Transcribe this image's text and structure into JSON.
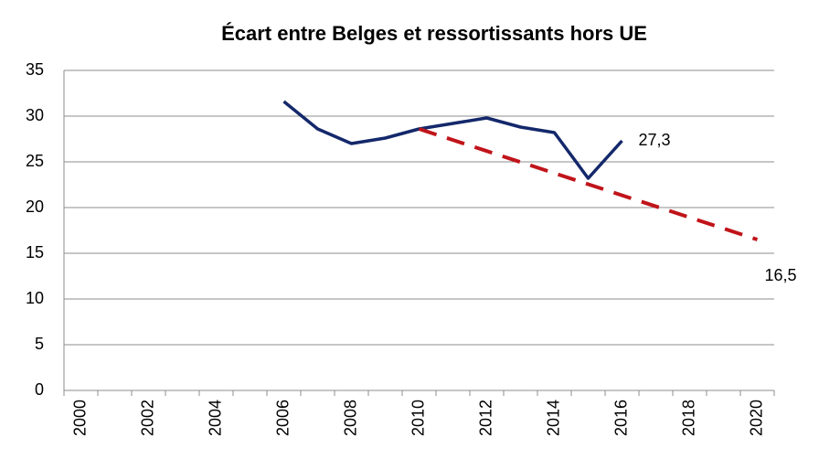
{
  "chart_data": {
    "type": "line",
    "title": "Écart entre Belges et ressortissants hors UE",
    "categories": [
      "2000",
      null,
      "2002",
      null,
      "2004",
      null,
      "2006",
      null,
      "2008",
      null,
      "2010",
      null,
      "2012",
      null,
      "2014",
      null,
      "2016",
      null,
      "2018",
      null,
      "2020"
    ],
    "series": [
      {
        "color": "#14286b",
        "dash": false,
        "values": [
          null,
          null,
          null,
          null,
          null,
          null,
          31.6,
          28.6,
          27.0,
          27.6,
          28.6,
          29.2,
          29.8,
          28.8,
          28.2,
          23.2,
          27.3,
          null,
          null,
          null,
          null
        ],
        "value_labels": [
          null,
          null,
          null,
          null,
          null,
          null,
          null,
          null,
          null,
          null,
          null,
          null,
          null,
          null,
          null,
          null,
          "27,3",
          null,
          null,
          null,
          null
        ]
      },
      {
        "color": "#c0141a",
        "dash": true,
        "values": [
          null,
          null,
          null,
          null,
          null,
          null,
          null,
          null,
          null,
          null,
          28.6,
          27.39,
          26.18,
          24.97,
          23.76,
          22.55,
          21.34,
          20.13,
          18.92,
          17.71,
          16.5
        ],
        "value_labels": [
          null,
          null,
          null,
          null,
          null,
          null,
          null,
          null,
          null,
          null,
          null,
          null,
          null,
          null,
          null,
          null,
          null,
          null,
          null,
          null,
          "16,5"
        ]
      }
    ],
    "ylim": [
      0,
      35
    ],
    "yticks": [
      0,
      5,
      10,
      15,
      20,
      25,
      30,
      35
    ],
    "grid": true
  }
}
